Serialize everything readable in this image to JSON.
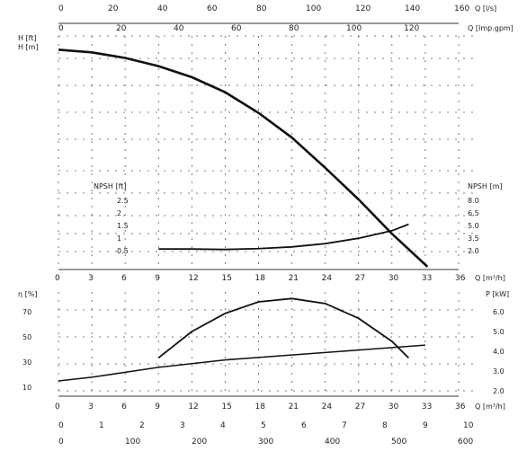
{
  "chart_data": [
    {
      "type": "line",
      "name_key": "head_curve",
      "top_axes": [
        {
          "unit": "Q [l/s]",
          "ticks": [
            "0",
            "20",
            "40",
            "60",
            "80",
            "100",
            "120",
            "140",
            "160"
          ]
        },
        {
          "unit": "Q [Imp.gpm]",
          "ticks": [
            "0",
            "20",
            "40",
            "60",
            "80",
            "100",
            "120"
          ]
        }
      ],
      "left_units": [
        "H [ft]",
        "H [m]"
      ],
      "x": [
        0,
        3,
        6,
        9,
        12,
        15,
        18,
        21,
        24,
        27,
        30,
        33.2
      ],
      "y": [
        16,
        15.8,
        15.4,
        14.8,
        14.0,
        12.9,
        11.4,
        9.6,
        7.4,
        5.1,
        2.6,
        0.2
      ],
      "xlim": [
        0,
        36
      ],
      "ylim": [
        0,
        17
      ]
    },
    {
      "type": "line",
      "name_key": "npsh_curve",
      "ylabel_left": "NPSH [ft]",
      "ylabel_right": "NPSH [m]",
      "tick_left": [
        "2.5",
        "2",
        "1.5",
        "1",
        "0.5"
      ],
      "tick_right": [
        "8.0",
        "6.5",
        "5.0",
        "3.5",
        "2.0"
      ],
      "x": [
        9,
        12,
        15,
        18,
        21,
        24,
        27,
        30,
        31.5
      ],
      "y": [
        0.2,
        0.2,
        0.18,
        0.22,
        0.3,
        0.45,
        0.7,
        1.05,
        1.35
      ]
    },
    {
      "type": "line",
      "name_key": "eff_power_curves",
      "xlabel": "Q [m³/h]",
      "x_ticks": [
        "0",
        "3",
        "6",
        "9",
        "12",
        "15",
        "18",
        "21",
        "24",
        "27",
        "30",
        "33",
        "36"
      ],
      "left_ticks": [
        "70",
        "50",
        "30",
        "10"
      ],
      "right_ticks": [
        "6.0",
        "5.0",
        "4.0",
        "3.0",
        "2.0"
      ],
      "eff_label": "η [%]",
      "power_label": "P [kW]",
      "efficiency": {
        "x": [
          9,
          12,
          15,
          18,
          21,
          24,
          27,
          30,
          31.5
        ],
        "y": [
          30,
          46,
          57,
          64,
          66,
          63,
          54,
          40,
          30
        ]
      },
      "power": {
        "x": [
          0,
          3,
          6,
          9,
          12,
          15,
          18,
          21,
          24,
          27,
          30,
          33
        ],
        "y": [
          2.4,
          2.55,
          2.75,
          2.95,
          3.1,
          3.25,
          3.35,
          3.45,
          3.55,
          3.65,
          3.75,
          3.85
        ]
      }
    }
  ],
  "bottom_axes": {
    "row1": [
      "0",
      "1",
      "2",
      "3",
      "4",
      "5",
      "6",
      "7",
      "8",
      "9",
      "10"
    ],
    "row2": [
      "0",
      "100",
      "200",
      "300",
      "400",
      "500",
      "600"
    ]
  }
}
